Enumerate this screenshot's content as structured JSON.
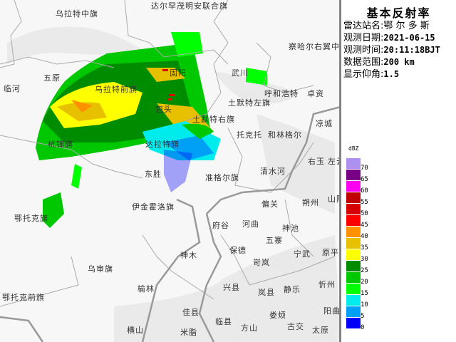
{
  "panel": {
    "title": "基本反射率",
    "rows": [
      {
        "label": "雷达站名:",
        "value": "鄂 尔 多 斯"
      },
      {
        "label": "观测日期:",
        "value": "2021-06-15"
      },
      {
        "label": "观测时间:",
        "value": "20:11:18BJT"
      },
      {
        "label": "数据范围:",
        "value": "200 km"
      },
      {
        "label": "显示仰角:",
        "value": "1.5"
      }
    ],
    "legend_unit": "dBZ",
    "legend": [
      {
        "value": "70",
        "color": "#ad90f0"
      },
      {
        "value": "65",
        "color": "#780084"
      },
      {
        "value": "60",
        "color": "#ff00f0"
      },
      {
        "value": "55",
        "color": "#c00000"
      },
      {
        "value": "50",
        "color": "#d60000"
      },
      {
        "value": "45",
        "color": "#ff0000"
      },
      {
        "value": "40",
        "color": "#ff9000"
      },
      {
        "value": "35",
        "color": "#e7c000"
      },
      {
        "value": "30",
        "color": "#ffff00"
      },
      {
        "value": "25",
        "color": "#008c00"
      },
      {
        "value": "20",
        "color": "#00c800"
      },
      {
        "value": "15",
        "color": "#00ff00"
      },
      {
        "value": "10",
        "color": "#00ecec"
      },
      {
        "value": "5",
        "color": "#00a0f6"
      },
      {
        "value": "0",
        "color": "#0000f6"
      }
    ]
  },
  "map": {
    "labels": [
      "乌拉特中旗",
      "达尔罕茂明安联合旗",
      "五原",
      "临河",
      "乌拉特前旗",
      "固阳",
      "包头",
      "武川",
      "察哈尔右翼中旗",
      "呼和浩特",
      "卓资",
      "土默特左旗",
      "土默特右旗",
      "托克托",
      "和林格尔",
      "凉城",
      "达拉特旗",
      "杭锦旗",
      "东胜",
      "准格尔旗",
      "清水河",
      "右玉",
      "左云",
      "伊金霍洛旗",
      "偏关",
      "朔州",
      "山阴",
      "府谷",
      "河曲",
      "神池",
      "五寨",
      "宁武",
      "原平",
      "保德",
      "神木",
      "岢岚",
      "乌审旗",
      "榆林",
      "兴县",
      "岚县",
      "静乐",
      "忻州",
      "鄂托克旗",
      "鄂托克前旗",
      "佳县",
      "临县",
      "娄烦",
      "阳曲",
      "横山",
      "米脂",
      "方山",
      "古交",
      "太原"
    ]
  }
}
